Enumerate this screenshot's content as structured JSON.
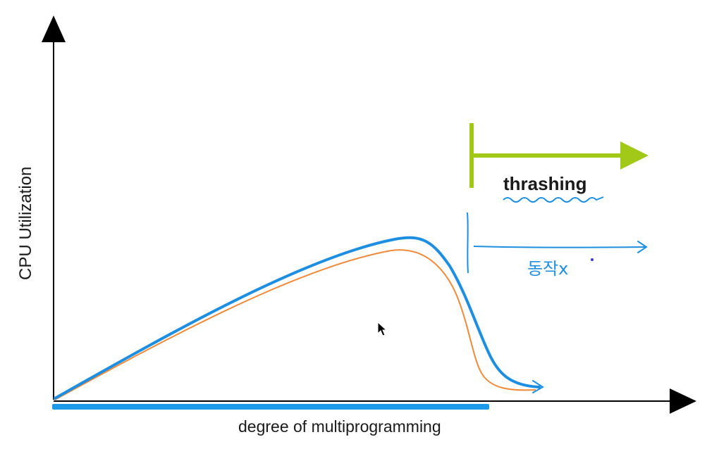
{
  "labels": {
    "y_axis": "CPU Utilization",
    "x_axis": "degree of multiprogramming",
    "thrashing": "thrashing",
    "handwritten_note": "동작x"
  },
  "colors": {
    "axis": "#000000",
    "curve_blue": "#1e8fe0",
    "curve_orange": "#ee8a3a",
    "thrashing_arrow": "#a2c918",
    "x_axis_highlight": "#1a9ae8",
    "annotation_blue": "#1e8fe0",
    "dot": "#3a3ad0"
  },
  "icons": {
    "pointer": "mouse-cursor-icon"
  }
}
